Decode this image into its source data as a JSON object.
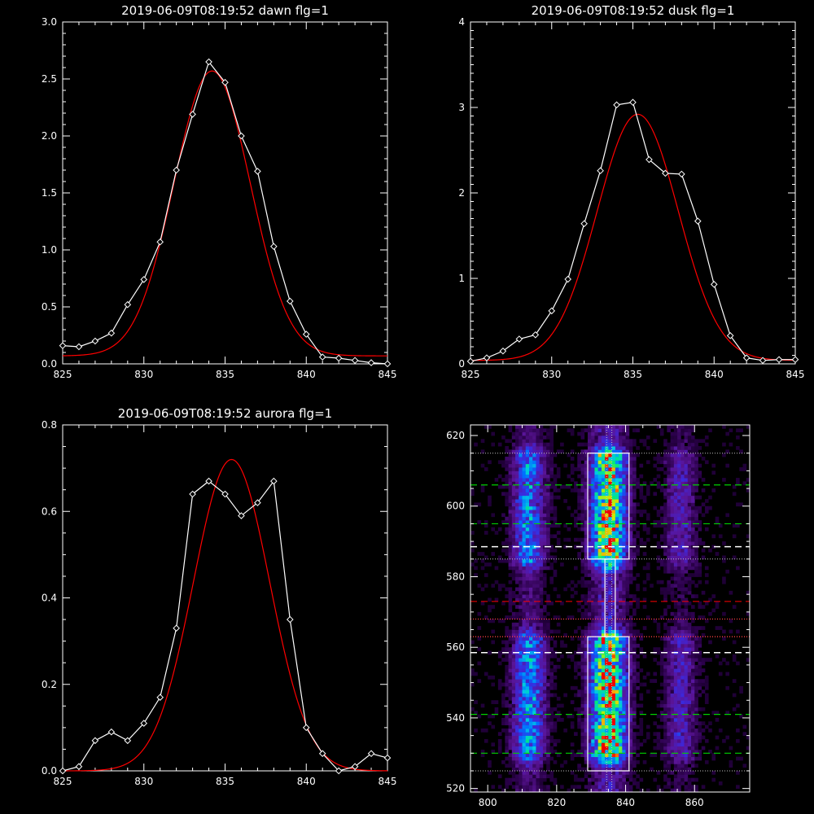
{
  "colors": {
    "background": "#000000",
    "axes": "#ffffff",
    "measured": "#ffffff",
    "fit": "#ff0000",
    "dash_green": "#00d000",
    "dash_white": "#ffffff",
    "dash_red": "#ff0000",
    "dot_red": "#ff4040",
    "dot_white": "#c0c0c0"
  },
  "chart_data": [
    {
      "type": "line",
      "title": "2019-06-09T08:19:52 dawn flg=1",
      "xlim": [
        825,
        845
      ],
      "ylim": [
        0,
        3
      ],
      "xticks": [
        "825",
        "830",
        "835",
        "840",
        "845"
      ],
      "yticks": [
        "0.0",
        "0.5",
        "1.0",
        "1.5",
        "2.0",
        "2.5",
        "3.0"
      ],
      "series": [
        {
          "role": "measured",
          "marker": "diamond",
          "x": [
            825,
            826,
            827,
            828,
            829,
            830,
            831,
            832,
            833,
            834,
            835,
            836,
            837,
            838,
            839,
            840,
            841,
            842,
            843,
            844,
            845
          ],
          "y": [
            0.16,
            0.15,
            0.2,
            0.27,
            0.52,
            0.74,
            1.07,
            1.7,
            2.19,
            2.65,
            2.47,
            2.0,
            1.69,
            1.03,
            0.55,
            0.26,
            0.06,
            0.05,
            0.03,
            0.01,
            0.0
          ]
        },
        {
          "role": "fit",
          "gauss": {
            "amp": 2.5,
            "center": 834.2,
            "sigma": 2.35,
            "base": 0.07
          }
        }
      ]
    },
    {
      "type": "line",
      "title": "2019-06-09T08:19:52 dusk flg=1",
      "xlim": [
        825,
        845
      ],
      "ylim": [
        0,
        4
      ],
      "xticks": [
        "825",
        "830",
        "835",
        "840",
        "845"
      ],
      "yticks": [
        "0",
        "1",
        "2",
        "3",
        "4"
      ],
      "series": [
        {
          "role": "measured",
          "marker": "diamond",
          "x": [
            825,
            826,
            827,
            828,
            829,
            830,
            831,
            832,
            833,
            834,
            835,
            836,
            837,
            838,
            839,
            840,
            841,
            842,
            843,
            844,
            845
          ],
          "y": [
            0.03,
            0.07,
            0.15,
            0.29,
            0.34,
            0.62,
            0.99,
            1.64,
            2.26,
            3.03,
            3.06,
            2.39,
            2.23,
            2.22,
            1.67,
            0.93,
            0.33,
            0.07,
            0.04,
            0.05,
            0.05
          ]
        },
        {
          "role": "fit",
          "gauss": {
            "amp": 2.88,
            "center": 835.3,
            "sigma": 2.5,
            "base": 0.04
          }
        }
      ]
    },
    {
      "type": "line",
      "title": "2019-06-09T08:19:52 aurora flg=1",
      "xlim": [
        825,
        845
      ],
      "ylim": [
        0,
        0.8
      ],
      "xticks": [
        "825",
        "830",
        "835",
        "840",
        "845"
      ],
      "yticks": [
        "0.0",
        "0.2",
        "0.4",
        "0.6",
        "0.8"
      ],
      "series": [
        {
          "role": "measured",
          "marker": "diamond",
          "x": [
            825,
            826,
            827,
            828,
            829,
            830,
            831,
            832,
            833,
            834,
            835,
            836,
            837,
            838,
            839,
            840,
            841,
            842,
            843,
            844,
            845
          ],
          "y": [
            0.0,
            0.01,
            0.07,
            0.09,
            0.07,
            0.11,
            0.17,
            0.33,
            0.64,
            0.67,
            0.64,
            0.59,
            0.62,
            0.67,
            0.35,
            0.1,
            0.04,
            0.0,
            0.01,
            0.04,
            0.03
          ]
        },
        {
          "role": "fit",
          "gauss": {
            "amp": 0.72,
            "center": 835.4,
            "sigma": 2.35,
            "base": 0.0
          }
        }
      ]
    },
    {
      "type": "heatmap",
      "title": "",
      "xlim": [
        795,
        876
      ],
      "ylim": [
        519,
        623
      ],
      "xticks": [
        "800",
        "820",
        "840",
        "860"
      ],
      "yticks": [
        "520",
        "540",
        "560",
        "580",
        "600",
        "620"
      ],
      "emission_columns": [
        {
          "center": 812,
          "width": 3.2,
          "strength": 0.55
        },
        {
          "center": 835,
          "width": 3.6,
          "strength": 0.95
        },
        {
          "center": 856,
          "width": 3.0,
          "strength": 0.3
        }
      ],
      "emission_bands": [
        {
          "y_from": 530,
          "y_to": 562,
          "strength": 1.0
        },
        {
          "y_from": 585,
          "y_to": 614,
          "strength": 0.9
        }
      ],
      "boxes": [
        {
          "x": [
            829,
            841
          ],
          "y": [
            525,
            563
          ]
        },
        {
          "x": [
            829,
            841
          ],
          "y": [
            585,
            615
          ]
        },
        {
          "x": [
            834,
            837
          ],
          "y": [
            563,
            585
          ]
        }
      ],
      "hlines": [
        {
          "y": 615,
          "style": "dot_white"
        },
        {
          "y": 606,
          "style": "dash_green"
        },
        {
          "y": 595,
          "style": "dash_green"
        },
        {
          "y": 588.5,
          "style": "dash_white"
        },
        {
          "y": 585,
          "style": "dot_white"
        },
        {
          "y": 573,
          "style": "dash_red"
        },
        {
          "y": 568,
          "style": "dot_red"
        },
        {
          "y": 563,
          "style": "dot_red"
        },
        {
          "y": 558.5,
          "style": "dash_white"
        },
        {
          "y": 541,
          "style": "dash_green"
        },
        {
          "y": 530,
          "style": "dash_green"
        },
        {
          "y": 525,
          "style": "dot_white"
        }
      ],
      "vlines": [
        {
          "x": 834.5,
          "style": "dot_white"
        },
        {
          "x": 836,
          "style": "dot_white"
        }
      ]
    }
  ]
}
